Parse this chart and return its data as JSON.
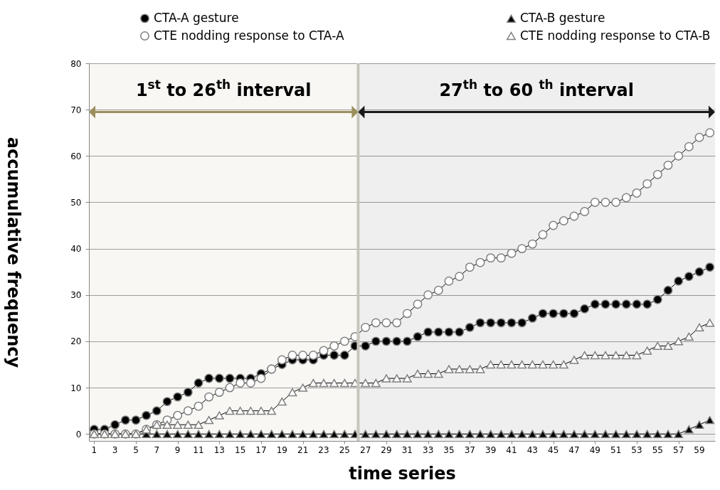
{
  "chart_data": {
    "type": "line",
    "xlabel": "time series",
    "ylabel": "accumulative frequency",
    "x": [
      1,
      2,
      3,
      4,
      5,
      6,
      7,
      8,
      9,
      10,
      11,
      12,
      13,
      14,
      15,
      16,
      17,
      18,
      19,
      20,
      21,
      22,
      23,
      24,
      25,
      26,
      27,
      28,
      29,
      30,
      31,
      32,
      33,
      34,
      35,
      36,
      37,
      38,
      39,
      40,
      41,
      42,
      43,
      44,
      45,
      46,
      47,
      48,
      49,
      50,
      51,
      52,
      53,
      54,
      55,
      56,
      57,
      58,
      59,
      60
    ],
    "xlim": [
      0.5,
      60.5
    ],
    "xticks": [
      1,
      3,
      5,
      7,
      9,
      11,
      13,
      15,
      17,
      19,
      21,
      23,
      25,
      27,
      29,
      31,
      33,
      35,
      37,
      39,
      41,
      43,
      45,
      47,
      49,
      51,
      53,
      55,
      57,
      59
    ],
    "ylim": [
      -1.5,
      80
    ],
    "yticks": [
      0,
      10,
      20,
      30,
      40,
      50,
      60,
      70,
      80
    ],
    "grid": "y",
    "legend": "top",
    "series": [
      {
        "name": "CTA-A gesture",
        "color": "#000000",
        "marker": "circle",
        "values": [
          1,
          1,
          2,
          3,
          3,
          4,
          5,
          7,
          8,
          9,
          11,
          12,
          12,
          12,
          12,
          12,
          13,
          14,
          15,
          16,
          16,
          16,
          17,
          17,
          17,
          19,
          19,
          20,
          20,
          20,
          20,
          21,
          22,
          22,
          22,
          22,
          23,
          24,
          24,
          24,
          24,
          24,
          25,
          26,
          26,
          26,
          26,
          27,
          28,
          28,
          28,
          28,
          28,
          28,
          29,
          31,
          33,
          34,
          35,
          36
        ]
      },
      {
        "name": "CTE nodding response to CTA-A",
        "color": "#ffffff",
        "marker": "circle",
        "values": [
          0,
          0,
          0,
          0,
          0,
          1,
          2,
          3,
          4,
          5,
          6,
          8,
          9,
          10,
          11,
          11,
          12,
          14,
          16,
          17,
          17,
          17,
          18,
          19,
          20,
          21,
          23,
          24,
          24,
          24,
          26,
          28,
          30,
          31,
          33,
          34,
          36,
          37,
          38,
          38,
          39,
          40,
          41,
          43,
          45,
          46,
          47,
          48,
          50,
          50,
          50,
          51,
          52,
          54,
          56,
          58,
          60,
          62,
          64,
          65
        ]
      },
      {
        "name": "CTA-B gesture",
        "color": "#000000",
        "marker": "triangle",
        "values": [
          0,
          0,
          0,
          0,
          0,
          0,
          0,
          0,
          0,
          0,
          0,
          0,
          0,
          0,
          0,
          0,
          0,
          0,
          0,
          0,
          0,
          0,
          0,
          0,
          0,
          0,
          0,
          0,
          0,
          0,
          0,
          0,
          0,
          0,
          0,
          0,
          0,
          0,
          0,
          0,
          0,
          0,
          0,
          0,
          0,
          0,
          0,
          0,
          0,
          0,
          0,
          0,
          0,
          0,
          0,
          0,
          0,
          1,
          2,
          3
        ]
      },
      {
        "name": "CTE nodding response to CTA-B",
        "color": "#ffffff",
        "marker": "triangle",
        "values": [
          0,
          0,
          0,
          0,
          0,
          1,
          2,
          2,
          2,
          2,
          2,
          3,
          4,
          5,
          5,
          5,
          5,
          5,
          7,
          9,
          10,
          11,
          11,
          11,
          11,
          11,
          11,
          11,
          12,
          12,
          12,
          13,
          13,
          13,
          14,
          14,
          14,
          14,
          15,
          15,
          15,
          15,
          15,
          15,
          15,
          15,
          16,
          17,
          17,
          17,
          17,
          17,
          17,
          18,
          19,
          19,
          20,
          21,
          23,
          24
        ]
      }
    ],
    "ref_lines": [
      {
        "axis": "x",
        "value": 26.3,
        "color": "#c8c6bc"
      }
    ],
    "bands": [
      {
        "axis": "x",
        "from": 0.5,
        "to": 26.3,
        "label": "1$^{st}$ to 26$^{th}$ interval",
        "color": "#9c8f5c"
      },
      {
        "axis": "x",
        "from": 26.3,
        "to": 60.5,
        "label": "27$^{th}$ to 60 $^{th}$ interval",
        "color": "#1a1a1a"
      }
    ]
  }
}
